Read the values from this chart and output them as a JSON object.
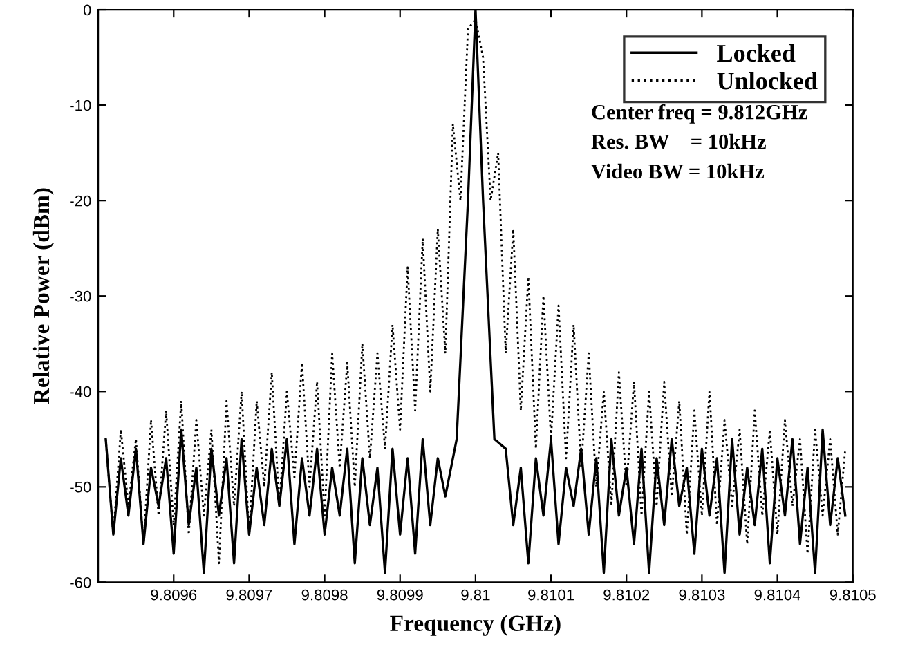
{
  "chart_data": {
    "type": "line",
    "xlabel": "Frequency (GHz)",
    "ylabel": "Relative Power (dBm)",
    "xlim": [
      9.8095,
      9.8105
    ],
    "xticks": [
      9.8096,
      9.8097,
      9.8098,
      9.8099,
      9.81,
      9.8101,
      9.8102,
      9.8103,
      9.8104,
      9.8105
    ],
    "ylim": [
      -60,
      0
    ],
    "yticks": [
      -60,
      -50,
      -40,
      -30,
      -20,
      -10,
      0
    ],
    "grid": false,
    "legend": "top right",
    "marker": "none",
    "annotations": [
      "Center freq = 9.812GHz",
      "Res. BW    = 10kHz",
      "Video BW = 10kHz"
    ],
    "series": [
      {
        "name": "Locked",
        "color": "#000000",
        "line_style": "solid",
        "x": [
          9.80951,
          9.80952,
          9.80953,
          9.80954,
          9.80955,
          9.80956,
          9.80957,
          9.80958,
          9.80959,
          9.8096,
          9.80961,
          9.80962,
          9.80963,
          9.80964,
          9.80965,
          9.80966,
          9.80967,
          9.80968,
          9.80969,
          9.8097,
          9.80971,
          9.80972,
          9.80973,
          9.80974,
          9.80975,
          9.80976,
          9.80977,
          9.80978,
          9.80979,
          9.8098,
          9.80981,
          9.80982,
          9.80983,
          9.80984,
          9.80985,
          9.80986,
          9.80987,
          9.80988,
          9.80989,
          9.8099,
          9.80991,
          9.80992,
          9.80993,
          9.80994,
          9.80995,
          9.80996,
          9.809975,
          9.80999,
          9.81,
          9.81001,
          9.810025,
          9.81004,
          9.81005,
          9.81006,
          9.81007,
          9.81008,
          9.81009,
          9.8101,
          9.81011,
          9.81012,
          9.81013,
          9.81014,
          9.81015,
          9.81016,
          9.81017,
          9.81018,
          9.81019,
          9.8102,
          9.81021,
          9.81022,
          9.81023,
          9.81024,
          9.81025,
          9.81026,
          9.81027,
          9.81028,
          9.81029,
          9.8103,
          9.81031,
          9.81032,
          9.81033,
          9.81034,
          9.81035,
          9.81036,
          9.81037,
          9.81038,
          9.81039,
          9.8104,
          9.81041,
          9.81042,
          9.81043,
          9.81044,
          9.81045,
          9.81046,
          9.81047,
          9.81048,
          9.81049
        ],
        "values": [
          -45,
          -55,
          -47,
          -53,
          -46,
          -56,
          -48,
          -52,
          -47,
          -57,
          -44,
          -54,
          -48,
          -59,
          -46,
          -53,
          -47,
          -58,
          -45,
          -55,
          -48,
          -54,
          -46,
          -52,
          -45,
          -56,
          -47,
          -53,
          -46,
          -55,
          -48,
          -53,
          -46,
          -58,
          -47,
          -54,
          -48,
          -59,
          -46,
          -55,
          -47,
          -57,
          -45,
          -54,
          -47,
          -51,
          -45,
          -20,
          0,
          -20,
          -45,
          -46,
          -54,
          -48,
          -58,
          -47,
          -53,
          -45,
          -56,
          -48,
          -52,
          -46,
          -55,
          -47,
          -59,
          -45,
          -53,
          -48,
          -56,
          -46,
          -59,
          -47,
          -54,
          -45,
          -52,
          -48,
          -57,
          -46,
          -53,
          -47,
          -59,
          -45,
          -55,
          -48,
          -54,
          -46,
          -58,
          -47,
          -53,
          -45,
          -56,
          -48,
          -59,
          -44,
          -54,
          -47,
          -53
        ]
      },
      {
        "name": "Unlocked",
        "color": "#000000",
        "line_style": "dotted",
        "x": [
          9.80951,
          9.80952,
          9.80953,
          9.80954,
          9.80955,
          9.80956,
          9.80957,
          9.80958,
          9.80959,
          9.8096,
          9.80961,
          9.80962,
          9.80963,
          9.80964,
          9.80965,
          9.80966,
          9.80967,
          9.80968,
          9.80969,
          9.8097,
          9.80971,
          9.80972,
          9.80973,
          9.80974,
          9.80975,
          9.80976,
          9.80977,
          9.80978,
          9.80979,
          9.8098,
          9.80981,
          9.80982,
          9.80983,
          9.80984,
          9.80985,
          9.80986,
          9.80987,
          9.80988,
          9.80989,
          9.8099,
          9.80991,
          9.80992,
          9.80993,
          9.80994,
          9.80995,
          9.80996,
          9.80997,
          9.80998,
          9.80999,
          9.81,
          9.81001,
          9.81002,
          9.81003,
          9.81004,
          9.81005,
          9.81006,
          9.81007,
          9.81008,
          9.81009,
          9.8101,
          9.81011,
          9.81012,
          9.81013,
          9.81014,
          9.81015,
          9.81016,
          9.81017,
          9.81018,
          9.81019,
          9.8102,
          9.81021,
          9.81022,
          9.81023,
          9.81024,
          9.81025,
          9.81026,
          9.81027,
          9.81028,
          9.81029,
          9.8103,
          9.81031,
          9.81032,
          9.81033,
          9.81034,
          9.81035,
          9.81036,
          9.81037,
          9.81038,
          9.81039,
          9.8104,
          9.81041,
          9.81042,
          9.81043,
          9.81044,
          9.81045,
          9.81046,
          9.81047,
          9.81048,
          9.81049
        ],
        "values": [
          -45,
          -55,
          -44,
          -52,
          -45,
          -56,
          -43,
          -53,
          -42,
          -54,
          -41,
          -55,
          -43,
          -53,
          -44,
          -58,
          -41,
          -52,
          -40,
          -55,
          -41,
          -50,
          -38,
          -52,
          -40,
          -49,
          -37,
          -50,
          -39,
          -53,
          -36,
          -48,
          -37,
          -50,
          -35,
          -47,
          -36,
          -46,
          -33,
          -44,
          -27,
          -42,
          -24,
          -40,
          -23,
          -36,
          -12,
          -20,
          -2,
          -1,
          -5,
          -20,
          -15,
          -36,
          -23,
          -42,
          -28,
          -46,
          -30,
          -45,
          -31,
          -47,
          -33,
          -48,
          -36,
          -50,
          -40,
          -52,
          -38,
          -50,
          -39,
          -53,
          -40,
          -52,
          -39,
          -51,
          -41,
          -55,
          -42,
          -53,
          -40,
          -54,
          -43,
          -52,
          -44,
          -56,
          -42,
          -53,
          -44,
          -55,
          -43,
          -52,
          -45,
          -57,
          -44,
          -53,
          -45,
          -55,
          -46
        ]
      }
    ]
  }
}
